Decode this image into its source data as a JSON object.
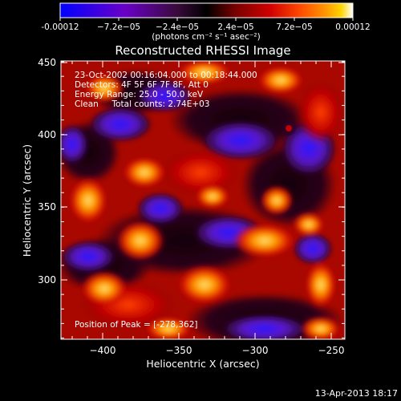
{
  "colorbar": {
    "tick_labels": [
      "-0.00012",
      "−7.2e−05",
      "−2.4e−05",
      "2.4e−05",
      "7.2e−05",
      "0.00012"
    ],
    "units_line": "(photons cm⁻² s⁻¹ asec⁻²)",
    "colors": [
      "#0000ff",
      "#6a00c8",
      "#3a0a3a",
      "#000000",
      "#7a0000",
      "#d10000",
      "#ff4a00",
      "#ff9a00",
      "#ffd400",
      "#ffffff"
    ]
  },
  "image": {
    "title": "Reconstructed RHESSI Image",
    "info_lines": [
      "23-Oct-2002 00:16:04.000 to 00:18:44.000",
      "Detectors: 4F 5F 6F 7F 8F, Att 0",
      "Energy Range: 25.0 - 50.0 keV",
      "Clean     Total counts: 2.74E+03"
    ],
    "peak_label": "Position of Peak = [-278,362]",
    "xlabel": "Heliocentric X (arcsec)",
    "ylabel": "Heliocentric Y (arcsec)",
    "xticks": [
      "−400",
      "−350",
      "−300",
      "−250"
    ],
    "yticks": [
      "300",
      "350",
      "400",
      "450"
    ]
  },
  "footer": {
    "date": "13-Apr-2013 18:17"
  }
}
